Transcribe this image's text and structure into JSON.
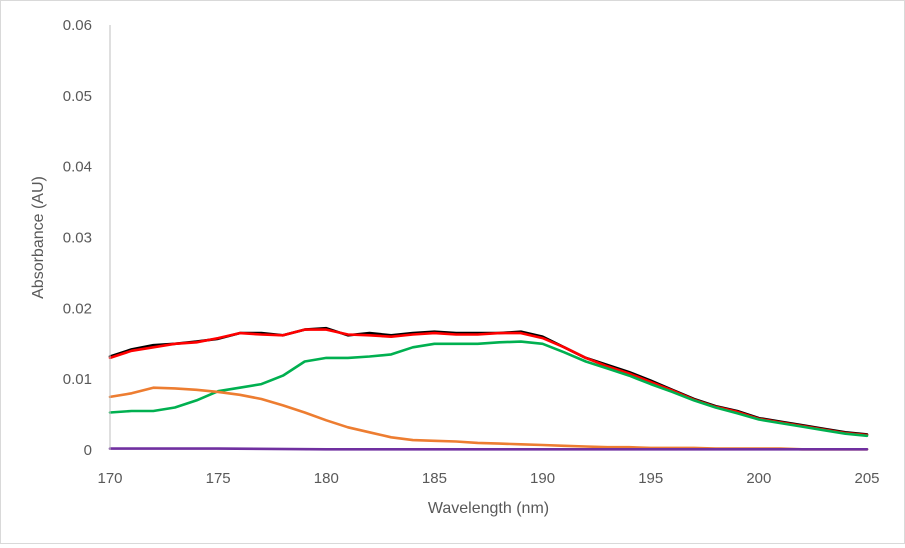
{
  "chart_data": {
    "type": "line",
    "title": "",
    "xlabel": "Wavelength (nm)",
    "ylabel": "Absorbance (AU)",
    "xlim": [
      170,
      205
    ],
    "ylim": [
      0,
      0.06
    ],
    "x_ticks": [
      "170",
      "175",
      "180",
      "185",
      "190",
      "195",
      "200",
      "205"
    ],
    "y_ticks": [
      "0",
      "0.01",
      "0.02",
      "0.03",
      "0.04",
      "0.05",
      "0.06"
    ],
    "grid": false,
    "legend": "none",
    "series": [
      {
        "color": "#000000",
        "x": [
          170,
          171,
          172,
          173,
          174,
          175,
          176,
          177,
          178,
          179,
          180,
          181,
          182,
          183,
          184,
          185,
          186,
          187,
          188,
          189,
          190,
          191,
          192,
          193,
          194,
          195,
          196,
          197,
          198,
          199,
          200,
          201,
          202,
          203,
          204,
          205
        ],
        "y": [
          0.0132,
          0.0142,
          0.0148,
          0.015,
          0.0153,
          0.0157,
          0.0165,
          0.0165,
          0.0162,
          0.017,
          0.0172,
          0.0162,
          0.0165,
          0.0162,
          0.0165,
          0.0167,
          0.0165,
          0.0165,
          0.0165,
          0.0167,
          0.016,
          0.0145,
          0.013,
          0.012,
          0.011,
          0.0098,
          0.0085,
          0.0072,
          0.0062,
          0.0055,
          0.0045,
          0.004,
          0.0035,
          0.003,
          0.0025,
          0.0022
        ]
      },
      {
        "color": "#ff0000",
        "x": [
          170,
          171,
          172,
          173,
          174,
          175,
          176,
          177,
          178,
          179,
          180,
          181,
          182,
          183,
          184,
          185,
          186,
          187,
          188,
          189,
          190,
          191,
          192,
          193,
          194,
          195,
          196,
          197,
          198,
          199,
          200,
          201,
          202,
          203,
          204,
          205
        ],
        "y": [
          0.013,
          0.014,
          0.0145,
          0.015,
          0.0152,
          0.0158,
          0.0165,
          0.0163,
          0.0162,
          0.017,
          0.017,
          0.0163,
          0.0162,
          0.016,
          0.0163,
          0.0165,
          0.0163,
          0.0163,
          0.0165,
          0.0165,
          0.0158,
          0.0145,
          0.013,
          0.0118,
          0.0108,
          0.0096,
          0.0084,
          0.0071,
          0.0061,
          0.0054,
          0.0044,
          0.0039,
          0.0034,
          0.0029,
          0.0024,
          0.0021
        ]
      },
      {
        "color": "#00b050",
        "x": [
          170,
          171,
          172,
          173,
          174,
          175,
          176,
          177,
          178,
          179,
          180,
          181,
          182,
          183,
          184,
          185,
          186,
          187,
          188,
          189,
          190,
          191,
          192,
          193,
          194,
          195,
          196,
          197,
          198,
          199,
          200,
          201,
          202,
          203,
          204,
          205
        ],
        "y": [
          0.0053,
          0.0055,
          0.0055,
          0.006,
          0.007,
          0.0083,
          0.0088,
          0.0093,
          0.0105,
          0.0125,
          0.013,
          0.013,
          0.0132,
          0.0135,
          0.0145,
          0.015,
          0.015,
          0.015,
          0.0152,
          0.0153,
          0.015,
          0.0138,
          0.0125,
          0.0115,
          0.0105,
          0.0093,
          0.0082,
          0.007,
          0.006,
          0.0052,
          0.0043,
          0.0038,
          0.0033,
          0.0028,
          0.0023,
          0.002
        ]
      },
      {
        "color": "#ed7d31",
        "x": [
          170,
          171,
          172,
          173,
          174,
          175,
          176,
          177,
          178,
          179,
          180,
          181,
          182,
          183,
          184,
          185,
          186,
          187,
          188,
          189,
          190,
          191,
          192,
          193,
          194,
          195,
          196,
          197,
          198,
          199,
          200,
          201,
          202,
          203,
          204,
          205
        ],
        "y": [
          0.0075,
          0.008,
          0.0088,
          0.0087,
          0.0085,
          0.0082,
          0.0078,
          0.0072,
          0.0063,
          0.0053,
          0.0042,
          0.0032,
          0.0025,
          0.0018,
          0.0014,
          0.0013,
          0.0012,
          0.001,
          0.0009,
          0.0008,
          0.0007,
          0.0006,
          0.0005,
          0.0004,
          0.0004,
          0.0003,
          0.0003,
          0.0003,
          0.0002,
          0.0002,
          0.0002,
          0.0002,
          0.0001,
          0.0001,
          0.0001,
          0.0001
        ]
      },
      {
        "color": "#7030a0",
        "x": [
          170,
          175,
          180,
          185,
          190,
          195,
          200,
          205
        ],
        "y": [
          0.0002,
          0.0002,
          0.0001,
          0.0001,
          0.0001,
          0.0001,
          0.0001,
          0.0001
        ]
      }
    ]
  }
}
